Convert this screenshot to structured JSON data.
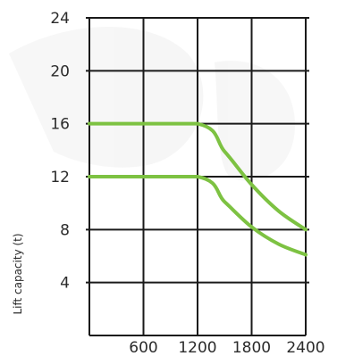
{
  "chart_data": {
    "type": "line",
    "title": "",
    "xlabel": "",
    "ylabel": "Lift capacity (t)",
    "xlim": [
      0,
      2400
    ],
    "ylim": [
      0,
      24
    ],
    "x_ticks": [
      600,
      1200,
      1800,
      2400
    ],
    "y_ticks": [
      4,
      8,
      12,
      16,
      20,
      24
    ],
    "grid": true,
    "series": [
      {
        "color": "#7dc242",
        "x": [
          0,
          1200,
          1500,
          1800,
          2100,
          2400
        ],
        "y": [
          16,
          16,
          13.9,
          11.4,
          9.4,
          8
        ]
      },
      {
        "color": "#7dc242",
        "x": [
          0,
          1200,
          1500,
          1800,
          2100,
          2400
        ],
        "y": [
          12,
          12,
          10.1,
          8.2,
          6.9,
          6.1
        ]
      }
    ]
  }
}
